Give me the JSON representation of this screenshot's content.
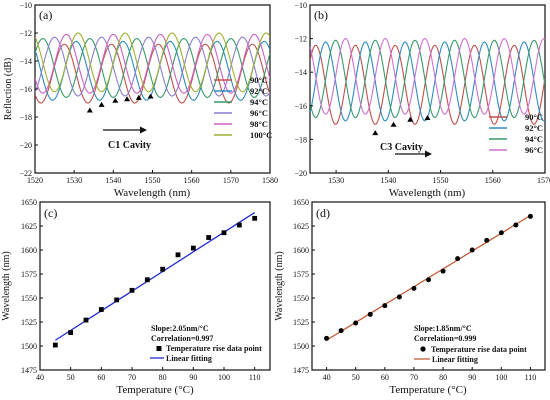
{
  "colors": {
    "c_axes": "#111111",
    "scatter_c": "#000000",
    "scatter_d": "#000000",
    "fit_c": "#1f2bd0",
    "fit_d": "#c2603d"
  },
  "chart_data": [
    {
      "id": "a",
      "panel_label": "(a)",
      "type": "line",
      "xlabel": "Wavelength (nm)",
      "ylabel": "Reflection (dB)",
      "xlim": [
        1520,
        1580
      ],
      "ylim": [
        -22,
        -10
      ],
      "xticks": [
        1520,
        1530,
        1540,
        1550,
        1560,
        1570,
        1580
      ],
      "yticks": [
        -22,
        -20,
        -18,
        -16,
        -14,
        -12,
        -10
      ],
      "x_tick_labels": [
        "1520",
        "1530",
        "1540",
        "1550",
        "1560",
        "1570",
        "1580"
      ],
      "y_tick_labels": [
        "−22",
        "−20",
        "−18",
        "−16",
        "−14",
        "−12",
        "−10"
      ],
      "legend_position": "right",
      "annotation": "C1 Cavity",
      "dip_markers": [
        [
          1534,
          -17.5
        ],
        [
          1537,
          -17.1
        ],
        [
          1540.5,
          -16.8
        ],
        [
          1543.5,
          -16.7
        ],
        [
          1546.5,
          -16.6
        ],
        [
          1549.5,
          -16.5
        ]
      ],
      "series": [
        {
          "name": "90°C",
          "color": "#c0504d",
          "period": 12.0,
          "max": -12.8,
          "min": -17.0,
          "dip": 1533.5
        },
        {
          "name": "92°C",
          "color": "#2e8bc0",
          "period": 12.0,
          "max": -12.6,
          "min": -16.8,
          "dip": 1536.5
        },
        {
          "name": "94°C",
          "color": "#3a9a6a",
          "period": 12.0,
          "max": -12.4,
          "min": -16.6,
          "dip": 1540.0
        },
        {
          "name": "96°C",
          "color": "#8a7fd0",
          "period": 12.0,
          "max": -12.3,
          "min": -16.5,
          "dip": 1543.0
        },
        {
          "name": "98°C",
          "color": "#d060c0",
          "period": 12.0,
          "max": -12.1,
          "min": -16.3,
          "dip": 1546.0
        },
        {
          "name": "100°C",
          "color": "#a0b030",
          "period": 12.0,
          "max": -12.0,
          "min": -16.2,
          "dip": 1549.0
        }
      ]
    },
    {
      "id": "b",
      "panel_label": "(b)",
      "type": "line",
      "xlabel": "Wavelength (nm)",
      "ylabel": "",
      "xlim": [
        1525,
        1570
      ],
      "ylim": [
        -20,
        -10
      ],
      "xticks": [
        1530,
        1540,
        1550,
        1560,
        1570
      ],
      "yticks": [
        -20,
        -18,
        -16,
        -14,
        -12,
        -10
      ],
      "x_tick_labels": [
        "1530",
        "1540",
        "1550",
        "1560",
        "1570"
      ],
      "y_tick_labels": [
        "−20",
        "−18",
        "−16",
        "−14",
        "−12",
        "−10"
      ],
      "legend_position": "bottom-right",
      "annotation": "C3 Cavity",
      "dip_markers": [
        [
          1537.5,
          -17.6
        ],
        [
          1541,
          -17.1
        ],
        [
          1544.2,
          -16.8
        ],
        [
          1547.5,
          -16.7
        ]
      ],
      "series": [
        {
          "name": "90°C",
          "color": "#c0504d",
          "period": 7.6,
          "max": -12.4,
          "min": -17.1,
          "dip": 1537.5
        },
        {
          "name": "92°C",
          "color": "#2e8bc0",
          "period": 7.6,
          "max": -12.2,
          "min": -16.9,
          "dip": 1539.4
        },
        {
          "name": "94°C",
          "color": "#3a9a6a",
          "period": 7.6,
          "max": -12.1,
          "min": -16.7,
          "dip": 1541.3
        },
        {
          "name": "96°C",
          "color": "#d070d0",
          "period": 7.6,
          "max": -12.0,
          "min": -16.5,
          "dip": 1543.2
        }
      ]
    },
    {
      "id": "c",
      "panel_label": "(c)",
      "type": "scatter",
      "xlabel": "Temperature (°C)",
      "ylabel": "Wavelength (nm)",
      "xlim": [
        40,
        115
      ],
      "ylim": [
        1475,
        1650
      ],
      "xticks": [
        40,
        50,
        60,
        70,
        80,
        90,
        100,
        110
      ],
      "yticks": [
        1475,
        1500,
        1525,
        1550,
        1575,
        1600,
        1625,
        1650
      ],
      "x_tick_labels": [
        "40",
        "50",
        "60",
        "70",
        "80",
        "90",
        "100",
        "110"
      ],
      "y_tick_labels": [
        "1475",
        "1500",
        "1525",
        "1550",
        "1575",
        "1600",
        "1625",
        "1650"
      ],
      "marker": "square",
      "points_x": [
        45,
        50,
        55,
        60,
        65,
        70,
        75,
        80,
        85,
        90,
        95,
        100,
        105,
        110
      ],
      "points_y": [
        1501,
        1514,
        1527,
        1538,
        1548,
        1558,
        1569,
        1580,
        1595,
        1602,
        1613,
        1618,
        1626,
        1633
      ],
      "fit": {
        "slope": 2.05,
        "x_start": 45,
        "x_end": 110,
        "y_start": 1506,
        "y_end": 1639
      },
      "text_lines": [
        "Slope:2.05nm/°C",
        "Correlation=0.997"
      ],
      "legend": [
        "Temperature rise data point",
        "Linear fitting"
      ],
      "legend_position": "bottom-right"
    },
    {
      "id": "d",
      "panel_label": "(d)",
      "type": "scatter",
      "xlabel": "Temperature (°C)",
      "ylabel": "Wavelength (nm)",
      "xlim": [
        35,
        115
      ],
      "ylim": [
        1475,
        1650
      ],
      "xticks": [
        40,
        50,
        60,
        70,
        80,
        90,
        100,
        110
      ],
      "yticks": [
        1475,
        1500,
        1525,
        1550,
        1575,
        1600,
        1625,
        1650
      ],
      "x_tick_labels": [
        "40",
        "50",
        "60",
        "70",
        "80",
        "90",
        "100",
        "110"
      ],
      "y_tick_labels": [
        "1475",
        "1500",
        "1525",
        "1550",
        "1575",
        "1600",
        "1625",
        "1650"
      ],
      "marker": "circle",
      "points_x": [
        40,
        45,
        50,
        55,
        60,
        65,
        70,
        75,
        80,
        85,
        90,
        95,
        100,
        105,
        110
      ],
      "points_y": [
        1508,
        1516,
        1524,
        1533,
        1542,
        1551,
        1560,
        1569,
        1578,
        1591,
        1600,
        1610,
        1618,
        1626,
        1635
      ],
      "fit": {
        "slope": 1.85,
        "x_start": 40,
        "x_end": 110,
        "y_start": 1506,
        "y_end": 1636
      },
      "text_lines": [
        "Slope:1.85nm/°C",
        "Correlation=0.999"
      ],
      "legend": [
        "Temperature rise data point",
        "Linear fitting"
      ],
      "legend_position": "bottom-right"
    }
  ]
}
